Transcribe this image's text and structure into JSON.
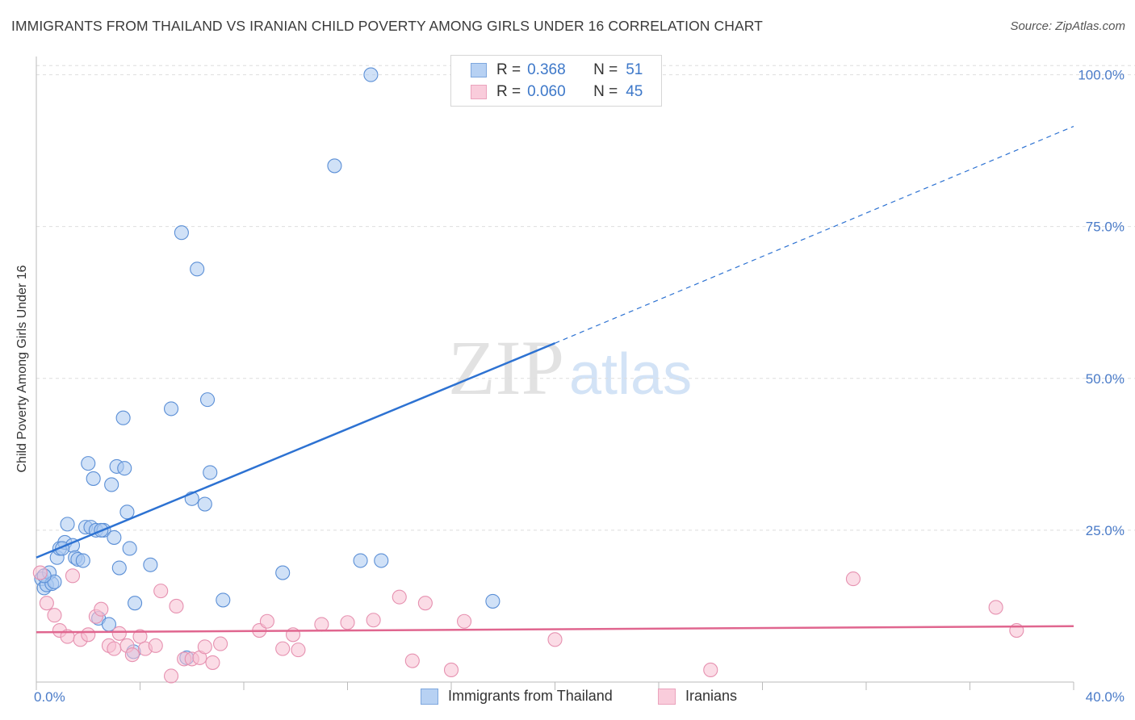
{
  "title": "IMMIGRANTS FROM THAILAND VS IRANIAN CHILD POVERTY AMONG GIRLS UNDER 16 CORRELATION CHART",
  "source": "Source: ZipAtlas.com",
  "watermark": {
    "zip": "ZIP",
    "atlas": "atlas"
  },
  "legend": {
    "rows": [
      {
        "r_label": "R = ",
        "r_value": "0.368",
        "n_label": "N = ",
        "n_value": "51"
      },
      {
        "r_label": "R = ",
        "r_value": "0.060",
        "n_label": "N = ",
        "n_value": "45"
      }
    ]
  },
  "colors": {
    "blue_fill": "#aac8f0",
    "blue_stroke": "#5b8fd6",
    "blue_line": "#2d72d2",
    "pink_fill": "#f7c0d2",
    "pink_stroke": "#e691b0",
    "pink_line": "#e0668f"
  },
  "chart_data": {
    "type": "scatter",
    "title": "IMMIGRANTS FROM THAILAND VS IRANIAN CHILD POVERTY AMONG GIRLS UNDER 16 CORRELATION CHART",
    "xlabel": "",
    "ylabel": "Child Poverty Among Girls Under 16",
    "xlim": [
      0,
      40
    ],
    "ylim": [
      0,
      103
    ],
    "x_tick_labels": [
      {
        "value": 0,
        "label": "0.0%"
      },
      {
        "value": 40,
        "label": "40.0%"
      }
    ],
    "y_tick_labels": [
      {
        "value": 25,
        "label": "25.0%"
      },
      {
        "value": 50,
        "label": "50.0%"
      },
      {
        "value": 75,
        "label": "75.0%"
      },
      {
        "value": 100,
        "label": "100.0%"
      }
    ],
    "grid": true,
    "legend_position": "bottom",
    "series": [
      {
        "name": "Immigrants from Thailand",
        "color": "blue",
        "points": [
          [
            0.2,
            17.0
          ],
          [
            0.3,
            15.5
          ],
          [
            0.4,
            16.0
          ],
          [
            0.5,
            18.0
          ],
          [
            0.6,
            16.2
          ],
          [
            0.7,
            16.5
          ],
          [
            0.8,
            20.5
          ],
          [
            0.9,
            22.0
          ],
          [
            1.1,
            23.0
          ],
          [
            1.2,
            26.0
          ],
          [
            1.4,
            22.5
          ],
          [
            1.5,
            20.5
          ],
          [
            1.6,
            20.2
          ],
          [
            1.8,
            20.0
          ],
          [
            1.9,
            25.5
          ],
          [
            2.0,
            36.0
          ],
          [
            2.1,
            25.5
          ],
          [
            2.2,
            33.5
          ],
          [
            2.3,
            25.0
          ],
          [
            2.4,
            10.5
          ],
          [
            2.6,
            25.0
          ],
          [
            2.8,
            9.5
          ],
          [
            2.9,
            32.5
          ],
          [
            3.0,
            23.8
          ],
          [
            3.1,
            35.5
          ],
          [
            3.2,
            18.8
          ],
          [
            3.35,
            43.5
          ],
          [
            3.4,
            35.2
          ],
          [
            3.5,
            28.0
          ],
          [
            3.6,
            22.0
          ],
          [
            3.8,
            13.0
          ],
          [
            4.4,
            19.3
          ],
          [
            5.2,
            45.0
          ],
          [
            5.6,
            74.0
          ],
          [
            6.0,
            30.2
          ],
          [
            6.2,
            68.0
          ],
          [
            6.5,
            29.3
          ],
          [
            6.6,
            46.5
          ],
          [
            6.7,
            34.5
          ],
          [
            7.2,
            13.5
          ],
          [
            9.5,
            18.0
          ],
          [
            11.5,
            85.0
          ],
          [
            12.5,
            20.0
          ],
          [
            12.9,
            100.0
          ],
          [
            13.3,
            20.0
          ],
          [
            17.6,
            13.3
          ],
          [
            3.75,
            5.0
          ],
          [
            5.8,
            4.0
          ],
          [
            0.3,
            17.5
          ],
          [
            1.0,
            22.0
          ],
          [
            2.5,
            25.0
          ]
        ]
      },
      {
        "name": "Iranians",
        "color": "pink",
        "points": [
          [
            0.15,
            18.0
          ],
          [
            0.4,
            13.0
          ],
          [
            0.7,
            11.0
          ],
          [
            0.9,
            8.5
          ],
          [
            1.2,
            7.5
          ],
          [
            1.4,
            17.5
          ],
          [
            1.7,
            7.0
          ],
          [
            2.0,
            7.8
          ],
          [
            2.3,
            10.8
          ],
          [
            2.5,
            12.0
          ],
          [
            2.8,
            6.0
          ],
          [
            3.0,
            5.5
          ],
          [
            3.2,
            8.0
          ],
          [
            3.5,
            6.0
          ],
          [
            3.7,
            4.5
          ],
          [
            4.0,
            7.5
          ],
          [
            4.2,
            5.5
          ],
          [
            4.6,
            6.0
          ],
          [
            4.8,
            15.0
          ],
          [
            5.2,
            1.0
          ],
          [
            5.4,
            12.5
          ],
          [
            5.7,
            3.8
          ],
          [
            6.0,
            3.8
          ],
          [
            6.3,
            4.0
          ],
          [
            6.5,
            5.8
          ],
          [
            6.8,
            3.2
          ],
          [
            7.1,
            6.3
          ],
          [
            8.6,
            8.5
          ],
          [
            8.9,
            10.0
          ],
          [
            9.5,
            5.5
          ],
          [
            9.9,
            7.8
          ],
          [
            10.1,
            5.3
          ],
          [
            11.0,
            9.5
          ],
          [
            12.0,
            9.8
          ],
          [
            13.0,
            10.2
          ],
          [
            14.0,
            14.0
          ],
          [
            14.5,
            3.5
          ],
          [
            15.0,
            13.0
          ],
          [
            16.0,
            2.0
          ],
          [
            16.5,
            10.0
          ],
          [
            20.0,
            7.0
          ],
          [
            26.0,
            2.0
          ],
          [
            31.5,
            17.0
          ],
          [
            37.0,
            12.3
          ],
          [
            37.8,
            8.5
          ]
        ]
      }
    ],
    "trend_lines": [
      {
        "series": "Immigrants from Thailand",
        "x_start": 0,
        "y_start": 20.5,
        "x_solid_end": 20,
        "y_solid_end": 55.8,
        "x_end": 40,
        "y_end": 91.5,
        "dashed_after_solid": true
      },
      {
        "series": "Iranians",
        "x_start": 0,
        "y_start": 8.2,
        "x_end": 40,
        "y_end": 9.2
      }
    ]
  }
}
